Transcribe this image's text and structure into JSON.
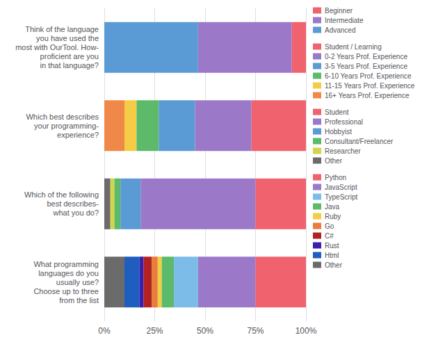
{
  "chart_data": {
    "type": "bar",
    "orientation": "horizontal",
    "stacked": true,
    "grid": true,
    "legend": "right",
    "categories": [
      "Think of the language\nyou have used the\nmost with OurTool. How-\nproficient are you\nin that language?",
      "Which best describes\nyour programming-\nexperience?",
      "Which of the following\nbest describes-\nwhat you do?",
      "What programming\nlanguages do you\nusually use?\nChoose up to three\nfrom the list"
    ],
    "series": [
      {
        "name": "Advanced",
        "color": "#5b9bd5",
        "values": [
          46.5,
          null,
          null,
          null
        ]
      },
      {
        "name": "Intermediate",
        "color": "#9b79c8",
        "values": [
          46.5,
          null,
          null,
          null
        ]
      },
      {
        "name": "Beginner",
        "color": "#f0626e",
        "values": [
          7.0,
          null,
          null,
          null
        ]
      },
      {
        "name": "16+ Years Prof. Experience",
        "color": "#f0884a",
        "values": [
          null,
          10.0,
          null,
          null
        ]
      },
      {
        "name": "11-15 Years Prof. Experience",
        "color": "#f5cc45",
        "values": [
          null,
          6.0,
          null,
          null
        ]
      },
      {
        "name": "6-10 Years Prof. Experience",
        "color": "#5dba6a",
        "values": [
          null,
          11.0,
          null,
          null
        ]
      },
      {
        "name": "3-5 Years Prof. Experience",
        "color": "#5b9bd5",
        "values": [
          null,
          18.0,
          null,
          null
        ]
      },
      {
        "name": "0-2 Years Prof. Experience",
        "color": "#9b79c8",
        "values": [
          null,
          28.0,
          null,
          null
        ]
      },
      {
        "name": "Student / Learning",
        "color": "#f0626e",
        "values": [
          null,
          27.0,
          null,
          null
        ]
      },
      {
        "name": "Other",
        "color": "#6b6b6b",
        "values": [
          null,
          null,
          3.0,
          null
        ]
      },
      {
        "name": "Researcher",
        "color": "#d4d44a",
        "values": [
          null,
          null,
          2.0,
          null
        ]
      },
      {
        "name": "Consultant/Freelancer",
        "color": "#5dba6a",
        "values": [
          null,
          null,
          3.0,
          null
        ]
      },
      {
        "name": "Hobbyist",
        "color": "#5b9bd5",
        "values": [
          null,
          null,
          10.0,
          null
        ]
      },
      {
        "name": "Professional",
        "color": "#9b79c8",
        "values": [
          null,
          null,
          57.0,
          null
        ]
      },
      {
        "name": "Student",
        "color": "#f0626e",
        "values": [
          null,
          null,
          25.0,
          null
        ]
      },
      {
        "name": "Other",
        "color": "#6b6b6b",
        "values": [
          null,
          null,
          null,
          10.0
        ]
      },
      {
        "name": "Html",
        "color": "#1f5dbf",
        "values": [
          null,
          null,
          null,
          7.5
        ]
      },
      {
        "name": "Rust",
        "color": "#3b1fad",
        "values": [
          null,
          null,
          null,
          2.0
        ]
      },
      {
        "name": "C#",
        "color": "#b22222",
        "values": [
          null,
          null,
          null,
          4.0
        ]
      },
      {
        "name": "Go",
        "color": "#e87d3e",
        "values": [
          null,
          null,
          null,
          3.0
        ]
      },
      {
        "name": "Ruby",
        "color": "#f5cc45",
        "values": [
          null,
          null,
          null,
          2.0
        ]
      },
      {
        "name": "Java",
        "color": "#5dba6a",
        "values": [
          null,
          null,
          null,
          6.0
        ]
      },
      {
        "name": "TypeScript",
        "color": "#7cbce8",
        "values": [
          null,
          null,
          null,
          12.0
        ]
      },
      {
        "name": "JavaScript",
        "color": "#9b79c8",
        "values": [
          null,
          null,
          null,
          28.5
        ]
      },
      {
        "name": "Python",
        "color": "#f0626e",
        "values": [
          null,
          null,
          null,
          25.0
        ]
      }
    ],
    "xlim": [
      0,
      100
    ],
    "xticks": [
      {
        "value": 0,
        "label": "0%"
      },
      {
        "value": 25,
        "label": "25%"
      },
      {
        "value": 50,
        "label": "50%"
      },
      {
        "value": 75,
        "label": "75%"
      },
      {
        "value": 100,
        "label": "100%"
      }
    ]
  }
}
